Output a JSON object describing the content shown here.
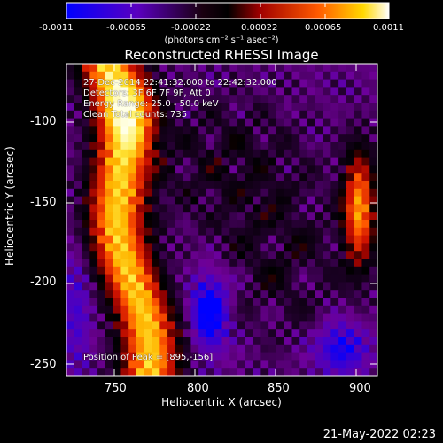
{
  "colorbar": {
    "ticks": [
      "-0.0011",
      "-0.00065",
      "-0.00022",
      "0.00022",
      "0.00065",
      "0.0011"
    ],
    "unit_label": "(photons cm⁻² s⁻¹ asec⁻²)",
    "range": [
      -0.0011,
      0.0011
    ]
  },
  "plot": {
    "title": "Reconstructed RHESSI Image",
    "xlabel": "Heliocentric X (arcsec)",
    "ylabel": "Heliocentric Y (arcsec)",
    "xticks": [
      "750",
      "800",
      "850",
      "900"
    ],
    "yticks": [
      "-100",
      "-150",
      "-200",
      "-250"
    ],
    "xrange": [
      717,
      910
    ],
    "yrange": [
      -262,
      -72
    ]
  },
  "annotations": {
    "time_range": "27-Dec-2014 22:41:32.000 to 22:42:32.000",
    "detectors": "Detectors: 3F 6F 7F 9F, Att 0",
    "energy": "Energy Range: 25.0 - 50.0 keV",
    "method": "Clean    Total counts: 735",
    "peak": "Position of Peak = [895,-156]"
  },
  "footer": {
    "date": "21-May-2022 02:23"
  },
  "colors": {
    "background": "#000000",
    "colormap": [
      "#0000ff",
      "#4400cc",
      "#000000",
      "#aa0000",
      "#ff5500",
      "#ffdd00",
      "#ffffff"
    ]
  }
}
